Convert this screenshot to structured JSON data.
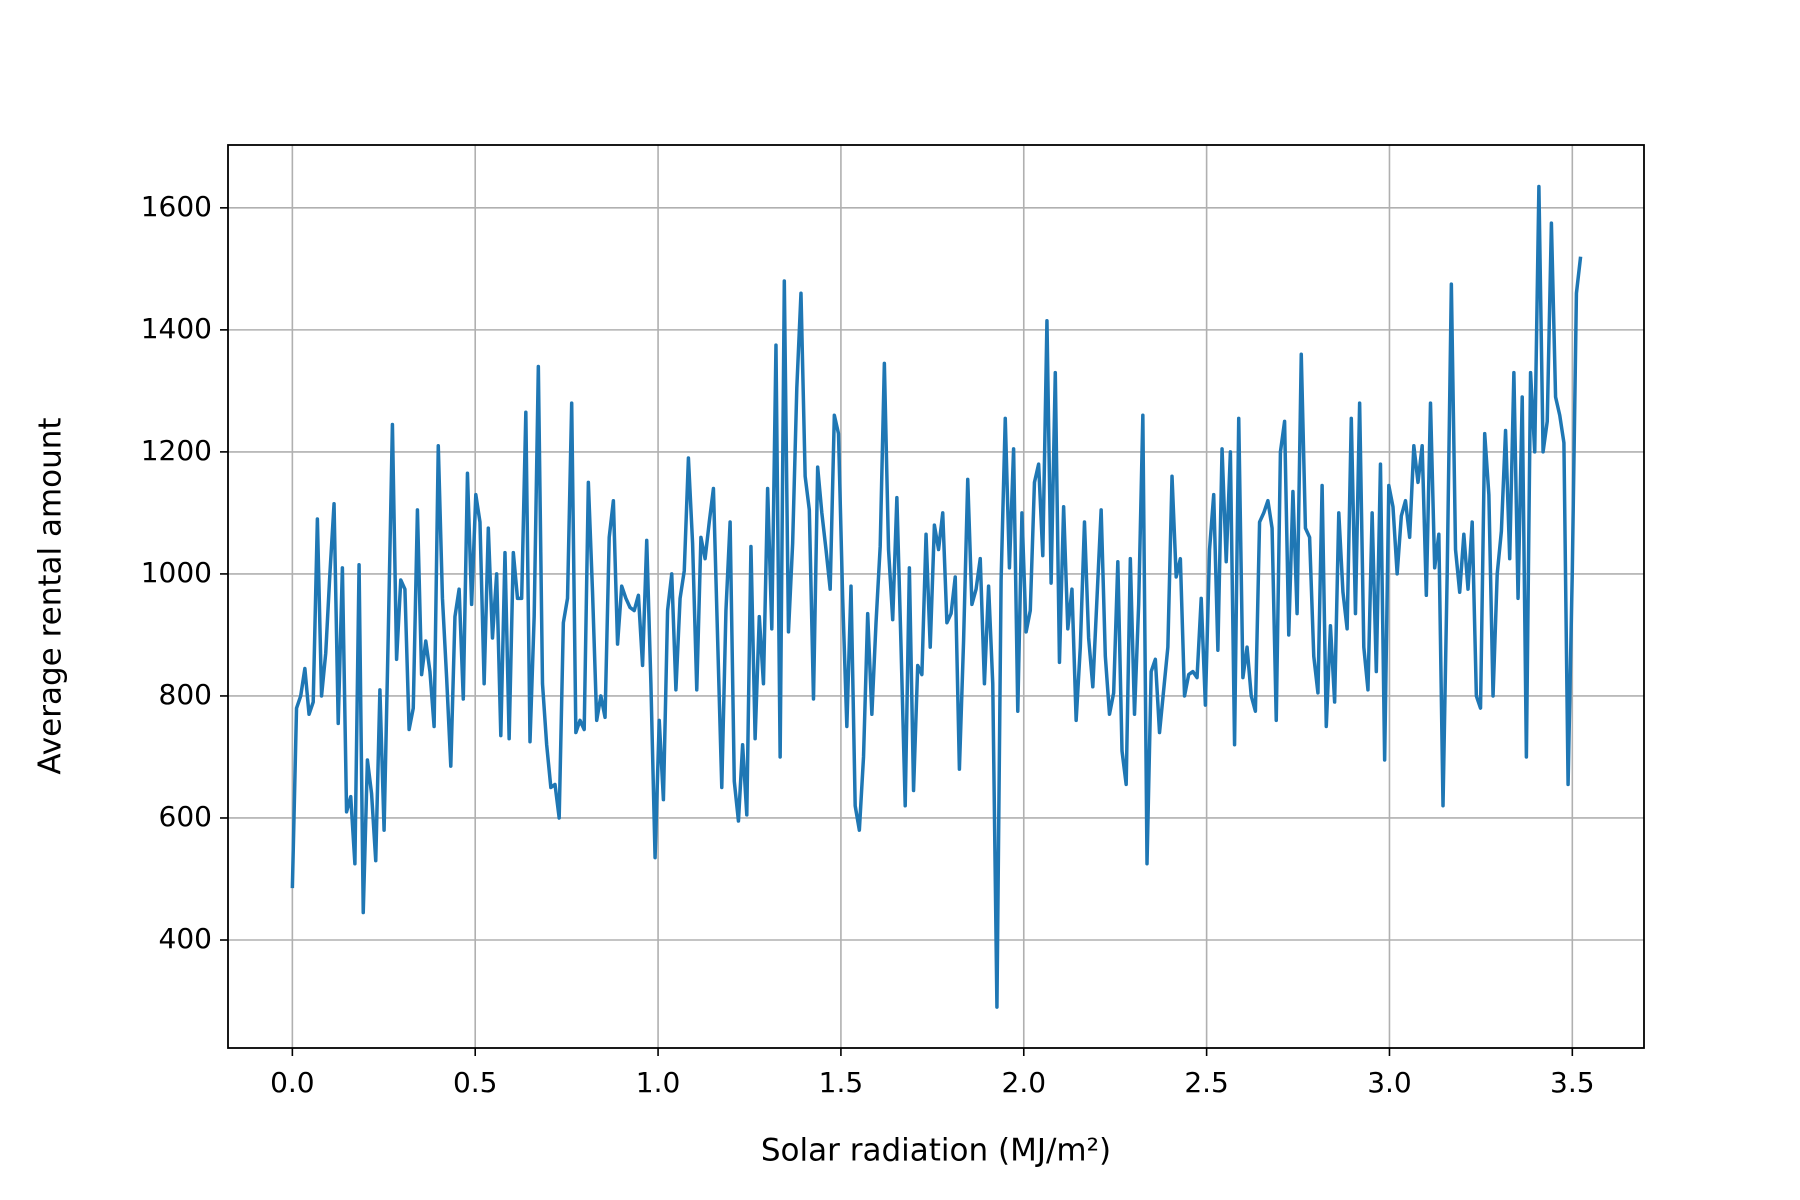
{
  "chart_data": {
    "type": "line",
    "xlabel": "Solar radiation (MJ/m²)",
    "ylabel": "Average rental amount",
    "color": "#1f77b4",
    "grid": true,
    "xlim": [
      -0.176,
      3.696
    ],
    "ylim": [
      223,
      1703
    ],
    "xticks": [
      {
        "value": 0,
        "label": "0.0"
      },
      {
        "value": 0.5,
        "label": "0.5"
      },
      {
        "value": 1,
        "label": "1.0"
      },
      {
        "value": 1.5,
        "label": "1.5"
      },
      {
        "value": 2,
        "label": "2.0"
      },
      {
        "value": 2.5,
        "label": "2.5"
      },
      {
        "value": 3,
        "label": "3.0"
      },
      {
        "value": 3.5,
        "label": "3.5"
      }
    ],
    "yticks": [
      400,
      600,
      800,
      1000,
      1200,
      1400,
      1600
    ],
    "x": [
      0,
      0.0114,
      0.0228,
      0.0342,
      0.0456,
      0.057,
      0.0684,
      0.0798,
      0.0912,
      0.1026,
      0.114,
      0.1254,
      0.1368,
      0.1482,
      0.1596,
      0.171,
      0.1824,
      0.1938,
      0.2052,
      0.2166,
      0.228,
      0.2394,
      0.2508,
      0.2622,
      0.2736,
      0.285,
      0.2964,
      0.3078,
      0.3192,
      0.3306,
      0.342,
      0.3534,
      0.3648,
      0.3762,
      0.3876,
      0.399,
      0.4104,
      0.4218,
      0.4332,
      0.4446,
      0.456,
      0.4674,
      0.4788,
      0.4902,
      0.5016,
      0.513,
      0.5244,
      0.5358,
      0.5472,
      0.5586,
      0.57,
      0.5814,
      0.5928,
      0.6042,
      0.6156,
      0.627,
      0.6384,
      0.6498,
      0.6612,
      0.6726,
      0.684,
      0.6954,
      0.7068,
      0.7182,
      0.7296,
      0.741,
      0.7524,
      0.7638,
      0.7752,
      0.7866,
      0.798,
      0.8094,
      0.8208,
      0.8322,
      0.8436,
      0.855,
      0.8664,
      0.8778,
      0.8892,
      0.9006,
      0.912,
      0.9234,
      0.9348,
      0.9462,
      0.9576,
      0.969,
      0.9804,
      0.9918,
      1.0032,
      1.0146,
      1.026,
      1.0374,
      1.0488,
      1.0602,
      1.0716,
      1.083,
      1.0944,
      1.1058,
      1.1172,
      1.1286,
      1.14,
      1.1514,
      1.1628,
      1.1742,
      1.1856,
      1.197,
      1.2084,
      1.2198,
      1.2312,
      1.2426,
      1.254,
      1.2654,
      1.2768,
      1.2882,
      1.2996,
      1.311,
      1.3224,
      1.3338,
      1.3452,
      1.3566,
      1.368,
      1.3794,
      1.3908,
      1.4022,
      1.4136,
      1.425,
      1.4364,
      1.4478,
      1.4592,
      1.4706,
      1.482,
      1.4934,
      1.5048,
      1.5162,
      1.5276,
      1.539,
      1.5504,
      1.5618,
      1.5732,
      1.5846,
      1.596,
      1.6074,
      1.6188,
      1.6302,
      1.6416,
      1.653,
      1.6644,
      1.6758,
      1.6872,
      1.6986,
      1.71,
      1.7214,
      1.7328,
      1.7442,
      1.7556,
      1.767,
      1.7784,
      1.7898,
      1.8012,
      1.8126,
      1.824,
      1.8354,
      1.8468,
      1.8582,
      1.8696,
      1.881,
      1.8924,
      1.9038,
      1.9152,
      1.9266,
      1.938,
      1.9494,
      1.9608,
      1.9722,
      1.9836,
      1.995,
      2.0064,
      2.0178,
      2.0292,
      2.0406,
      2.052,
      2.0634,
      2.0748,
      2.0862,
      2.0976,
      2.109,
      2.1204,
      2.1318,
      2.1432,
      2.1546,
      2.166,
      2.1774,
      2.1888,
      2.2002,
      2.2116,
      2.223,
      2.2344,
      2.2458,
      2.2572,
      2.2686,
      2.28,
      2.2914,
      2.3028,
      2.3142,
      2.3256,
      2.337,
      2.3484,
      2.3598,
      2.3712,
      2.3826,
      2.394,
      2.4054,
      2.4168,
      2.4282,
      2.4396,
      2.451,
      2.4624,
      2.4738,
      2.4852,
      2.4966,
      2.508,
      2.5194,
      2.5308,
      2.5422,
      2.5536,
      2.565,
      2.5764,
      2.5878,
      2.5992,
      2.6106,
      2.622,
      2.6334,
      2.6448,
      2.6562,
      2.6676,
      2.679,
      2.6904,
      2.7018,
      2.7132,
      2.7246,
      2.736,
      2.7474,
      2.7588,
      2.7702,
      2.7816,
      2.793,
      2.8044,
      2.8158,
      2.8272,
      2.8386,
      2.85,
      2.8614,
      2.8728,
      2.8842,
      2.8956,
      2.907,
      2.9184,
      2.9298,
      2.9412,
      2.9526,
      2.964,
      2.9754,
      2.9868,
      2.9982,
      3.0096,
      3.021,
      3.0324,
      3.0438,
      3.0552,
      3.0666,
      3.078,
      3.0894,
      3.1008,
      3.1122,
      3.1236,
      3.135,
      3.1464,
      3.1578,
      3.1692,
      3.1806,
      3.192,
      3.2034,
      3.2148,
      3.2262,
      3.2376,
      3.249,
      3.2604,
      3.2718,
      3.2832,
      3.2946,
      3.306,
      3.3174,
      3.3288,
      3.3402,
      3.3516,
      3.363,
      3.3744,
      3.3858,
      3.3972,
      3.4086,
      3.42,
      3.4314,
      3.4428,
      3.4542,
      3.4656,
      3.477,
      3.4884,
      3.4998,
      3.5112,
      3.5226
    ],
    "values": [
      485,
      780,
      800,
      845,
      770,
      790,
      1090,
      800,
      870,
      1000,
      1115,
      755,
      1010,
      610,
      635,
      525,
      1015,
      445,
      695,
      640,
      530,
      810,
      580,
      900,
      1245,
      860,
      990,
      975,
      745,
      780,
      1105,
      835,
      890,
      840,
      750,
      1210,
      960,
      830,
      685,
      930,
      975,
      795,
      1165,
      950,
      1130,
      1085,
      820,
      1075,
      895,
      1000,
      735,
      1035,
      730,
      1035,
      960,
      960,
      1265,
      725,
      930,
      1340,
      820,
      720,
      650,
      655,
      600,
      920,
      960,
      1280,
      740,
      760,
      745,
      1150,
      970,
      760,
      800,
      765,
      1060,
      1120,
      885,
      980,
      960,
      945,
      940,
      965,
      850,
      1055,
      820,
      535,
      760,
      630,
      940,
      1000,
      810,
      960,
      1005,
      1190,
      1050,
      810,
      1060,
      1025,
      1085,
      1140,
      895,
      650,
      940,
      1085,
      660,
      595,
      720,
      605,
      1045,
      730,
      930,
      820,
      1140,
      910,
      1375,
      700,
      1480,
      905,
      1050,
      1305,
      1460,
      1160,
      1105,
      795,
      1175,
      1100,
      1040,
      975,
      1260,
      1230,
      960,
      750,
      980,
      620,
      580,
      700,
      935,
      770,
      920,
      1045,
      1345,
      1040,
      925,
      1125,
      880,
      620,
      1010,
      645,
      850,
      835,
      1065,
      880,
      1080,
      1040,
      1100,
      920,
      935,
      995,
      680,
      890,
      1155,
      950,
      975,
      1025,
      820,
      980,
      820,
      290,
      990,
      1255,
      1010,
      1205,
      775,
      1100,
      905,
      940,
      1150,
      1180,
      1030,
      1415,
      985,
      1330,
      855,
      1110,
      910,
      975,
      760,
      880,
      1085,
      895,
      815,
      960,
      1105,
      865,
      770,
      805,
      1020,
      710,
      655,
      1025,
      770,
      950,
      1260,
      525,
      840,
      860,
      740,
      810,
      880,
      1160,
      995,
      1025,
      800,
      835,
      840,
      830,
      960,
      785,
      1040,
      1130,
      875,
      1205,
      1020,
      1200,
      720,
      1255,
      830,
      880,
      800,
      775,
      1085,
      1100,
      1120,
      1075,
      760,
      1200,
      1250,
      900,
      1135,
      935,
      1360,
      1075,
      1060,
      865,
      805,
      1145,
      750,
      915,
      790,
      1100,
      970,
      910,
      1255,
      935,
      1280,
      880,
      810,
      1100,
      840,
      1180,
      695,
      1145,
      1110,
      1000,
      1095,
      1120,
      1060,
      1210,
      1150,
      1210,
      965,
      1280,
      1010,
      1065,
      620,
      1000,
      1475,
      1040,
      970,
      1065,
      975,
      1085,
      800,
      780,
      1230,
      1130,
      800,
      1000,
      1070,
      1235,
      1025,
      1330,
      960,
      1290,
      700,
      1330,
      1200,
      1635,
      1200,
      1250,
      1575,
      1290,
      1260,
      1215,
      655,
      1000,
      1460,
      1520
    ]
  }
}
